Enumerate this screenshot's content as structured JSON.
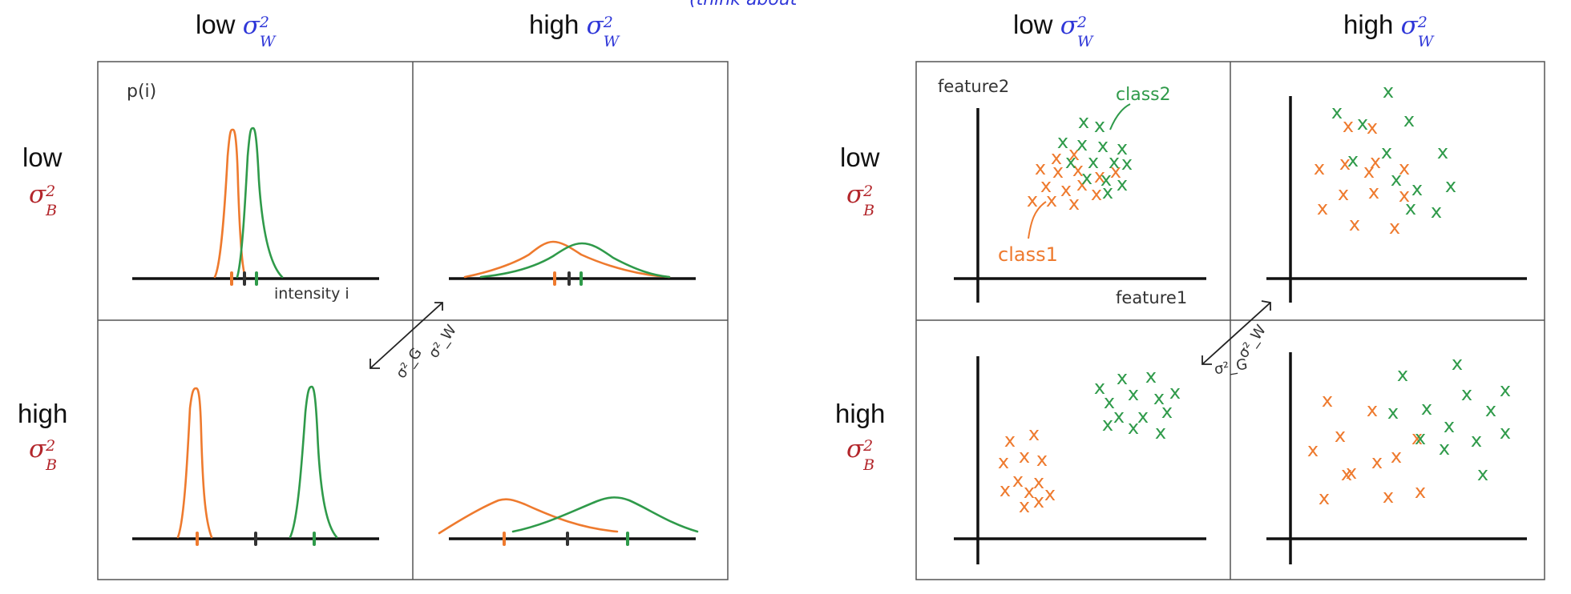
{
  "colors": {
    "class1": "#ee7a2e",
    "class2": "#2f9a4a",
    "axis": "#111111",
    "mean": "#333333",
    "sigma_w": "#2f37d8",
    "sigma_b": "#b3262b",
    "grid": "#555555"
  },
  "top_fragment": "(think about",
  "col_headers": {
    "low": "low",
    "high": "high",
    "sigma_w_base": "σ",
    "sigma_w_sup": "2",
    "sigma_w_sub": "W"
  },
  "row_headers": {
    "low": "low",
    "high": "high",
    "sigma_b_base": "σ",
    "sigma_b_sup": "2",
    "sigma_b_sub": "B"
  },
  "left_diagram": {
    "y_label": "p(i)",
    "x_label": "intensity i",
    "arrow_label_a": "σ²_W",
    "arrow_label_b": "σ²_G"
  },
  "right_diagram": {
    "y_label": "feature2",
    "x_label": "feature1",
    "class1_label": "class1",
    "class2_label": "class2",
    "arrow_label_a": "σ²_W",
    "arrow_label_b": "σ²_G"
  },
  "x_marker_glyph": "x",
  "mean_marker_glyph": "|"
}
